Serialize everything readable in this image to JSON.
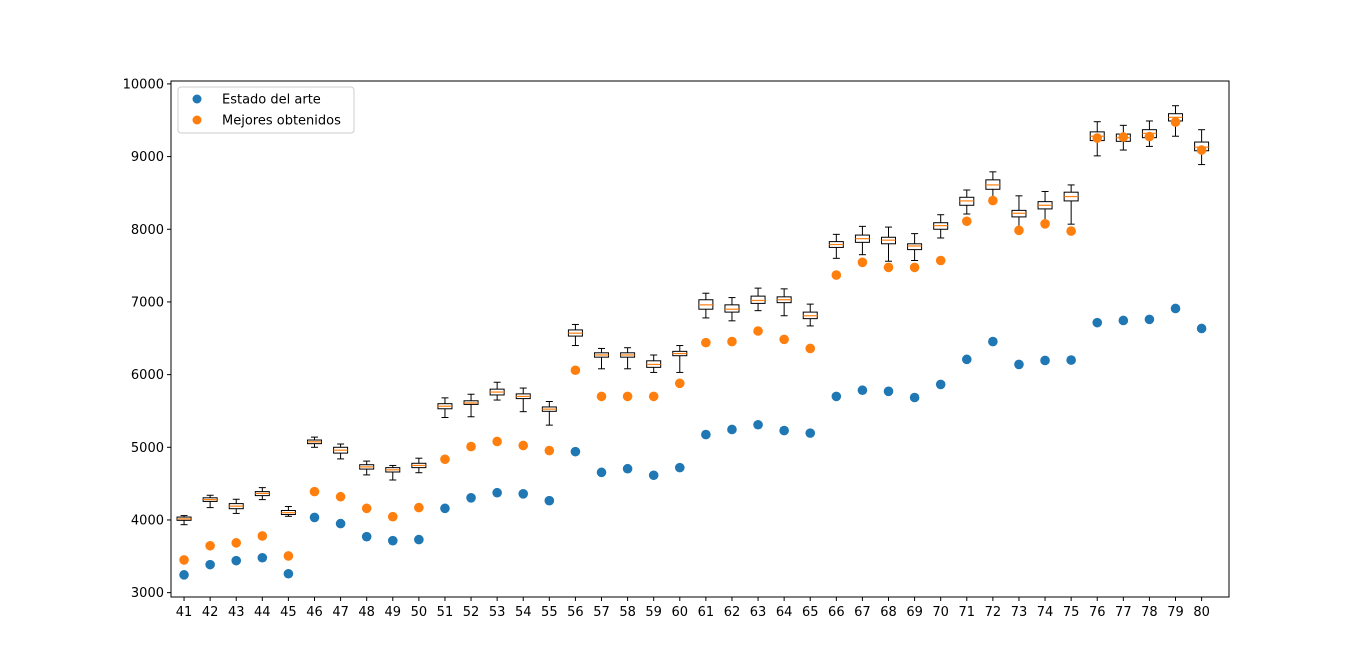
{
  "chart_data": {
    "type": "box+scatter",
    "title": "",
    "xlabel": "",
    "ylabel": "",
    "ylim": [
      2940,
      10040
    ],
    "grid": false,
    "legend_position": "top-left",
    "x": [
      "41",
      "42",
      "43",
      "44",
      "45",
      "46",
      "47",
      "48",
      "49",
      "50",
      "51",
      "52",
      "53",
      "54",
      "55",
      "56",
      "57",
      "58",
      "59",
      "60",
      "61",
      "62",
      "63",
      "64",
      "65",
      "66",
      "67",
      "68",
      "69",
      "70",
      "71",
      "72",
      "73",
      "74",
      "75",
      "76",
      "77",
      "78",
      "79",
      "80"
    ],
    "yticks": [
      3000,
      4000,
      5000,
      6000,
      7000,
      8000,
      9000,
      10000
    ],
    "series": [
      {
        "name": "Estado del arte",
        "color": "#1f77b4",
        "values": [
          3245,
          3385,
          3440,
          3480,
          3260,
          4035,
          3950,
          3770,
          3715,
          3730,
          4160,
          4305,
          4375,
          4360,
          4265,
          4940,
          4655,
          4705,
          4615,
          4720,
          5175,
          5245,
          5310,
          5230,
          5195,
          5700,
          5785,
          5770,
          5685,
          5865,
          6210,
          6455,
          6140,
          6195,
          6200,
          6715,
          6745,
          6760,
          6910,
          6635
        ]
      },
      {
        "name": "Mejores obtenidos",
        "color": "#ff7f0e",
        "values": [
          3450,
          3645,
          3685,
          3780,
          3505,
          4390,
          4320,
          4160,
          4045,
          4170,
          4835,
          5010,
          5080,
          5025,
          4955,
          6060,
          5700,
          5700,
          5700,
          5880,
          6440,
          6455,
          6600,
          6485,
          6360,
          7370,
          7545,
          7475,
          7475,
          7570,
          8110,
          8395,
          7985,
          8075,
          7975,
          9255,
          9270,
          9275,
          9475,
          9090
        ]
      }
    ],
    "boxes": [
      {
        "min": 3935,
        "q1": 3995,
        "median": 4015,
        "q3": 4040,
        "max": 4060
      },
      {
        "min": 4170,
        "q1": 4255,
        "median": 4280,
        "q3": 4305,
        "max": 4340
      },
      {
        "min": 4090,
        "q1": 4155,
        "median": 4190,
        "q3": 4225,
        "max": 4285
      },
      {
        "min": 4280,
        "q1": 4335,
        "median": 4365,
        "q3": 4390,
        "max": 4445
      },
      {
        "min": 4050,
        "q1": 4075,
        "median": 4100,
        "q3": 4130,
        "max": 4185
      },
      {
        "min": 5000,
        "q1": 5050,
        "median": 5075,
        "q3": 5100,
        "max": 5140
      },
      {
        "min": 4840,
        "q1": 4920,
        "median": 4960,
        "q3": 5000,
        "max": 5045
      },
      {
        "min": 4620,
        "q1": 4700,
        "median": 4730,
        "q3": 4760,
        "max": 4810
      },
      {
        "min": 4550,
        "q1": 4660,
        "median": 4690,
        "q3": 4720,
        "max": 4750
      },
      {
        "min": 4650,
        "q1": 4720,
        "median": 4750,
        "q3": 4780,
        "max": 4850
      },
      {
        "min": 5410,
        "q1": 5530,
        "median": 5565,
        "q3": 5600,
        "max": 5680
      },
      {
        "min": 5420,
        "q1": 5590,
        "median": 5610,
        "q3": 5640,
        "max": 5730
      },
      {
        "min": 5650,
        "q1": 5720,
        "median": 5760,
        "q3": 5800,
        "max": 5895
      },
      {
        "min": 5490,
        "q1": 5670,
        "median": 5700,
        "q3": 5735,
        "max": 5815
      },
      {
        "min": 5305,
        "q1": 5495,
        "median": 5525,
        "q3": 5555,
        "max": 5630
      },
      {
        "min": 6400,
        "q1": 6530,
        "median": 6570,
        "q3": 6615,
        "max": 6690
      },
      {
        "min": 6080,
        "q1": 6240,
        "median": 6270,
        "q3": 6300,
        "max": 6360
      },
      {
        "min": 6080,
        "q1": 6240,
        "median": 6270,
        "q3": 6300,
        "max": 6370
      },
      {
        "min": 6030,
        "q1": 6100,
        "median": 6140,
        "q3": 6190,
        "max": 6270
      },
      {
        "min": 6030,
        "q1": 6260,
        "median": 6290,
        "q3": 6320,
        "max": 6400
      },
      {
        "min": 6780,
        "q1": 6900,
        "median": 6960,
        "q3": 7030,
        "max": 7120
      },
      {
        "min": 6740,
        "q1": 6860,
        "median": 6900,
        "q3": 6960,
        "max": 7060
      },
      {
        "min": 6880,
        "q1": 6980,
        "median": 7020,
        "q3": 7080,
        "max": 7190
      },
      {
        "min": 6810,
        "q1": 6990,
        "median": 7030,
        "q3": 7070,
        "max": 7180
      },
      {
        "min": 6670,
        "q1": 6770,
        "median": 6810,
        "q3": 6860,
        "max": 6970
      },
      {
        "min": 7600,
        "q1": 7750,
        "median": 7790,
        "q3": 7830,
        "max": 7930
      },
      {
        "min": 7650,
        "q1": 7820,
        "median": 7870,
        "q3": 7920,
        "max": 8040
      },
      {
        "min": 7560,
        "q1": 7800,
        "median": 7850,
        "q3": 7890,
        "max": 8030
      },
      {
        "min": 7570,
        "q1": 7720,
        "median": 7770,
        "q3": 7800,
        "max": 7940
      },
      {
        "min": 7880,
        "q1": 8000,
        "median": 8050,
        "q3": 8090,
        "max": 8200
      },
      {
        "min": 8210,
        "q1": 8330,
        "median": 8390,
        "q3": 8440,
        "max": 8540
      },
      {
        "min": 8390,
        "q1": 8550,
        "median": 8610,
        "q3": 8680,
        "max": 8790
      },
      {
        "min": 8010,
        "q1": 8170,
        "median": 8220,
        "q3": 8260,
        "max": 8460
      },
      {
        "min": 8060,
        "q1": 8280,
        "median": 8330,
        "q3": 8380,
        "max": 8520
      },
      {
        "min": 8070,
        "q1": 8390,
        "median": 8450,
        "q3": 8510,
        "max": 8610
      },
      {
        "min": 9010,
        "q1": 9220,
        "median": 9280,
        "q3": 9340,
        "max": 9480
      },
      {
        "min": 9090,
        "q1": 9210,
        "median": 9260,
        "q3": 9310,
        "max": 9430
      },
      {
        "min": 9140,
        "q1": 9260,
        "median": 9320,
        "q3": 9370,
        "max": 9490
      },
      {
        "min": 9280,
        "q1": 9490,
        "median": 9540,
        "q3": 9590,
        "max": 9700
      },
      {
        "min": 8890,
        "q1": 9080,
        "median": 9130,
        "q3": 9200,
        "max": 9370
      }
    ]
  }
}
